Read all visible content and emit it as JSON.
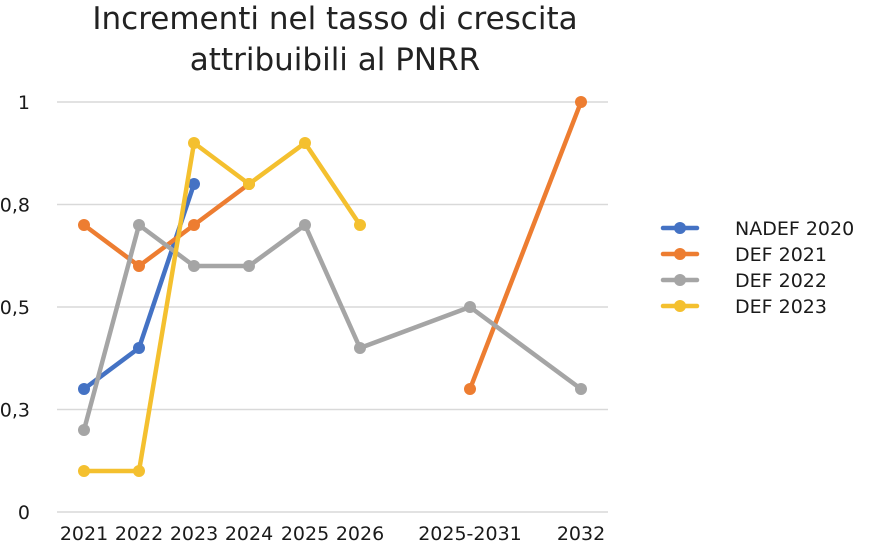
{
  "chart_data": {
    "type": "line",
    "title_lines": [
      "Incrementi nel tasso di crescita",
      "attribuibili al PNRR"
    ],
    "categories": [
      "2021",
      "2022",
      "2023",
      "2024",
      "2025",
      "2026",
      "2025-2031",
      "2032"
    ],
    "yticks": [
      "0",
      "0,3",
      "0,5",
      "0,8",
      "1"
    ],
    "ylim": [
      0,
      1
    ],
    "grid": true,
    "legend_position": "right",
    "series": [
      {
        "name": "NADEF 2020",
        "color": "#4472c4",
        "values": [
          0.3,
          0.4,
          0.8,
          null,
          null,
          null,
          null,
          null
        ]
      },
      {
        "name": "DEF 2021",
        "color": "#ed7d31",
        "values": [
          0.7,
          0.6,
          0.7,
          0.8,
          null,
          null,
          0.3,
          1.0
        ]
      },
      {
        "name": "DEF 2022",
        "color": "#a5a5a5",
        "values": [
          0.2,
          0.7,
          0.6,
          0.6,
          0.7,
          0.4,
          0.5,
          0.3
        ]
      },
      {
        "name": "DEF 2023",
        "color": "#f4c02f",
        "values": [
          0.1,
          0.1,
          0.9,
          0.8,
          0.9,
          0.7,
          null,
          null
        ]
      }
    ]
  }
}
